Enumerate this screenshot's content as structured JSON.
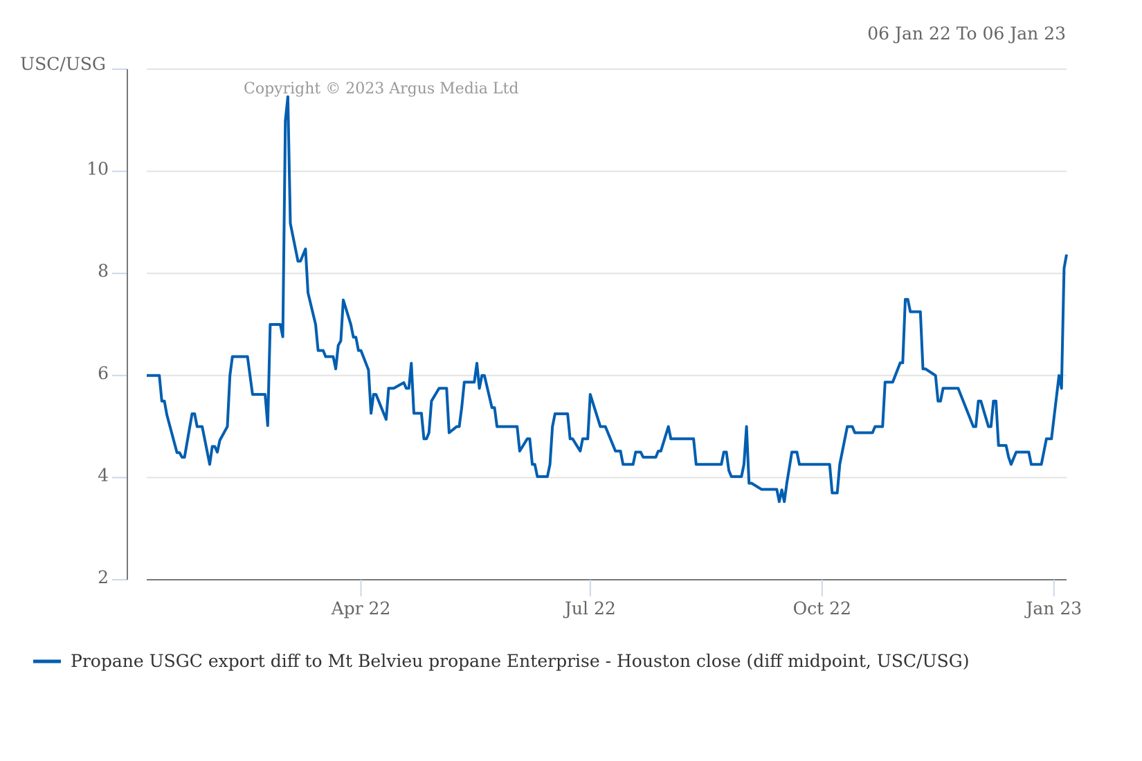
{
  "chart_data": {
    "type": "line",
    "date_range": "06 Jan 22 To 06 Jan 23",
    "ylabel": "USC/USG",
    "copyright": "Copyright © 2023 Argus Media Ltd",
    "ylim": [
      2,
      12
    ],
    "xlim": [
      "2022-01-06",
      "2023-01-06"
    ],
    "yticks": [
      2,
      4,
      6,
      8,
      10
    ],
    "xticks": [
      {
        "date": "2022-04-01",
        "label": "Apr 22"
      },
      {
        "date": "2022-07-01",
        "label": "Jul 22"
      },
      {
        "date": "2022-10-01",
        "label": "Oct 22"
      },
      {
        "date": "2023-01-01",
        "label": "Jan 23"
      }
    ],
    "grid": true,
    "legend_position": "bottom",
    "colors": {
      "series": "#005eb0",
      "grid": "#e3e3e3",
      "axis": "#777777",
      "tick": "#ccd6eb"
    },
    "series": [
      {
        "name": "Propane USGC export diff to Mt Belvieu propane Enterprise - Houston close (diff midpoint, USC/USG)",
        "points": [
          [
            "2022-01-06",
            6.0
          ],
          [
            "2022-01-11",
            6.0
          ],
          [
            "2022-01-12",
            5.5
          ],
          [
            "2022-01-13",
            5.5
          ],
          [
            "2022-01-14",
            5.23
          ],
          [
            "2022-01-18",
            4.49
          ],
          [
            "2022-01-19",
            4.49
          ],
          [
            "2022-01-20",
            4.4
          ],
          [
            "2022-01-21",
            4.4
          ],
          [
            "2022-01-24",
            5.25
          ],
          [
            "2022-01-25",
            5.25
          ],
          [
            "2022-01-26",
            5.0
          ],
          [
            "2022-01-28",
            5.0
          ],
          [
            "2022-01-31",
            4.26
          ],
          [
            "2022-02-01",
            4.61
          ],
          [
            "2022-02-02",
            4.61
          ],
          [
            "2022-02-03",
            4.5
          ],
          [
            "2022-02-04",
            4.73
          ],
          [
            "2022-02-07",
            5.0
          ],
          [
            "2022-02-08",
            6.0
          ],
          [
            "2022-02-09",
            6.37
          ],
          [
            "2022-02-15",
            6.37
          ],
          [
            "2022-02-17",
            5.63
          ],
          [
            "2022-02-22",
            5.63
          ],
          [
            "2022-02-23",
            5.02
          ],
          [
            "2022-02-24",
            7.0
          ],
          [
            "2022-02-28",
            7.0
          ],
          [
            "2022-03-01",
            6.76
          ],
          [
            "2022-03-02",
            10.99
          ],
          [
            "2022-03-03",
            11.46
          ],
          [
            "2022-03-04",
            8.98
          ],
          [
            "2022-03-07",
            8.24
          ],
          [
            "2022-03-08",
            8.24
          ],
          [
            "2022-03-10",
            8.48
          ],
          [
            "2022-03-11",
            7.62
          ],
          [
            "2022-03-14",
            7.0
          ],
          [
            "2022-03-15",
            6.49
          ],
          [
            "2022-03-17",
            6.49
          ],
          [
            "2022-03-18",
            6.37
          ],
          [
            "2022-03-21",
            6.37
          ],
          [
            "2022-03-22",
            6.13
          ],
          [
            "2022-03-23",
            6.59
          ],
          [
            "2022-03-24",
            6.68
          ],
          [
            "2022-03-25",
            7.48
          ],
          [
            "2022-03-28",
            7.0
          ],
          [
            "2022-03-29",
            6.75
          ],
          [
            "2022-03-30",
            6.75
          ],
          [
            "2022-03-31",
            6.49
          ],
          [
            "2022-04-01",
            6.49
          ],
          [
            "2022-04-04",
            6.11
          ],
          [
            "2022-04-05",
            5.26
          ],
          [
            "2022-04-06",
            5.63
          ],
          [
            "2022-04-07",
            5.63
          ],
          [
            "2022-04-11",
            5.14
          ],
          [
            "2022-04-12",
            5.75
          ],
          [
            "2022-04-14",
            5.75
          ],
          [
            "2022-04-18",
            5.86
          ],
          [
            "2022-04-19",
            5.75
          ],
          [
            "2022-04-20",
            5.75
          ],
          [
            "2022-04-21",
            6.24
          ],
          [
            "2022-04-22",
            5.26
          ],
          [
            "2022-04-25",
            5.26
          ],
          [
            "2022-04-26",
            4.76
          ],
          [
            "2022-04-27",
            4.76
          ],
          [
            "2022-04-28",
            4.88
          ],
          [
            "2022-04-29",
            5.5
          ],
          [
            "2022-05-02",
            5.75
          ],
          [
            "2022-05-05",
            5.75
          ],
          [
            "2022-05-06",
            4.88
          ],
          [
            "2022-05-09",
            5.0
          ],
          [
            "2022-05-10",
            5.0
          ],
          [
            "2022-05-11",
            5.37
          ],
          [
            "2022-05-12",
            5.87
          ],
          [
            "2022-05-16",
            5.87
          ],
          [
            "2022-05-17",
            6.24
          ],
          [
            "2022-05-18",
            5.75
          ],
          [
            "2022-05-19",
            6.0
          ],
          [
            "2022-05-20",
            6.0
          ],
          [
            "2022-05-23",
            5.37
          ],
          [
            "2022-05-24",
            5.37
          ],
          [
            "2022-05-25",
            5.0
          ],
          [
            "2022-06-02",
            5.0
          ],
          [
            "2022-06-03",
            4.52
          ],
          [
            "2022-06-06",
            4.76
          ],
          [
            "2022-06-07",
            4.76
          ],
          [
            "2022-06-08",
            4.26
          ],
          [
            "2022-06-09",
            4.26
          ],
          [
            "2022-06-10",
            4.02
          ],
          [
            "2022-06-14",
            4.02
          ],
          [
            "2022-06-15",
            4.26
          ],
          [
            "2022-06-16",
            5.0
          ],
          [
            "2022-06-17",
            5.25
          ],
          [
            "2022-06-22",
            5.25
          ],
          [
            "2022-06-23",
            4.76
          ],
          [
            "2022-06-24",
            4.76
          ],
          [
            "2022-06-27",
            4.52
          ],
          [
            "2022-06-28",
            4.76
          ],
          [
            "2022-06-30",
            4.76
          ],
          [
            "2022-07-01",
            5.63
          ],
          [
            "2022-07-05",
            5.0
          ],
          [
            "2022-07-07",
            5.0
          ],
          [
            "2022-07-11",
            4.52
          ],
          [
            "2022-07-13",
            4.52
          ],
          [
            "2022-07-14",
            4.26
          ],
          [
            "2022-07-18",
            4.26
          ],
          [
            "2022-07-19",
            4.5
          ],
          [
            "2022-07-21",
            4.5
          ],
          [
            "2022-07-22",
            4.4
          ],
          [
            "2022-07-27",
            4.4
          ],
          [
            "2022-07-28",
            4.52
          ],
          [
            "2022-07-29",
            4.52
          ],
          [
            "2022-08-01",
            5.0
          ],
          [
            "2022-08-02",
            4.76
          ],
          [
            "2022-08-11",
            4.76
          ],
          [
            "2022-08-12",
            4.26
          ],
          [
            "2022-08-22",
            4.26
          ],
          [
            "2022-08-23",
            4.5
          ],
          [
            "2022-08-24",
            4.5
          ],
          [
            "2022-08-25",
            4.14
          ],
          [
            "2022-08-26",
            4.02
          ],
          [
            "2022-08-30",
            4.02
          ],
          [
            "2022-08-31",
            4.26
          ],
          [
            "2022-09-01",
            5.0
          ],
          [
            "2022-09-02",
            3.89
          ],
          [
            "2022-09-03",
            3.89
          ],
          [
            "2022-09-07",
            3.77
          ],
          [
            "2022-09-13",
            3.77
          ],
          [
            "2022-09-14",
            3.53
          ],
          [
            "2022-09-15",
            3.76
          ],
          [
            "2022-09-16",
            3.53
          ],
          [
            "2022-09-17",
            3.89
          ],
          [
            "2022-09-19",
            4.5
          ],
          [
            "2022-09-21",
            4.5
          ],
          [
            "2022-09-22",
            4.26
          ],
          [
            "2022-10-04",
            4.26
          ],
          [
            "2022-10-05",
            3.7
          ],
          [
            "2022-10-07",
            3.7
          ],
          [
            "2022-10-08",
            4.26
          ],
          [
            "2022-10-11",
            5.0
          ],
          [
            "2022-10-13",
            5.0
          ],
          [
            "2022-10-14",
            4.88
          ],
          [
            "2022-10-21",
            4.88
          ],
          [
            "2022-10-22",
            5.0
          ],
          [
            "2022-10-25",
            5.0
          ],
          [
            "2022-10-26",
            5.87
          ],
          [
            "2022-10-29",
            5.87
          ],
          [
            "2022-11-01",
            6.25
          ],
          [
            "2022-11-02",
            6.25
          ],
          [
            "2022-11-03",
            7.49
          ],
          [
            "2022-11-04",
            7.49
          ],
          [
            "2022-11-05",
            7.25
          ],
          [
            "2022-11-09",
            7.25
          ],
          [
            "2022-11-10",
            6.13
          ],
          [
            "2022-11-11",
            6.13
          ],
          [
            "2022-11-15",
            6.0
          ],
          [
            "2022-11-16",
            5.5
          ],
          [
            "2022-11-17",
            5.5
          ],
          [
            "2022-11-18",
            5.75
          ],
          [
            "2022-11-24",
            5.75
          ],
          [
            "2022-11-30",
            5.0
          ],
          [
            "2022-12-01",
            5.0
          ],
          [
            "2022-12-02",
            5.5
          ],
          [
            "2022-12-03",
            5.5
          ],
          [
            "2022-12-06",
            5.0
          ],
          [
            "2022-12-07",
            5.0
          ],
          [
            "2022-12-08",
            5.5
          ],
          [
            "2022-12-09",
            5.5
          ],
          [
            "2022-12-10",
            4.63
          ],
          [
            "2022-12-13",
            4.63
          ],
          [
            "2022-12-14",
            4.4
          ],
          [
            "2022-12-15",
            4.26
          ],
          [
            "2022-12-17",
            4.5
          ],
          [
            "2022-12-22",
            4.5
          ],
          [
            "2022-12-23",
            4.26
          ],
          [
            "2022-12-27",
            4.26
          ],
          [
            "2022-12-29",
            4.76
          ],
          [
            "2022-12-31",
            4.76
          ],
          [
            "2023-01-03",
            6.0
          ],
          [
            "2023-01-04",
            5.75
          ],
          [
            "2023-01-05",
            8.1
          ],
          [
            "2023-01-06",
            8.37
          ]
        ]
      }
    ]
  }
}
